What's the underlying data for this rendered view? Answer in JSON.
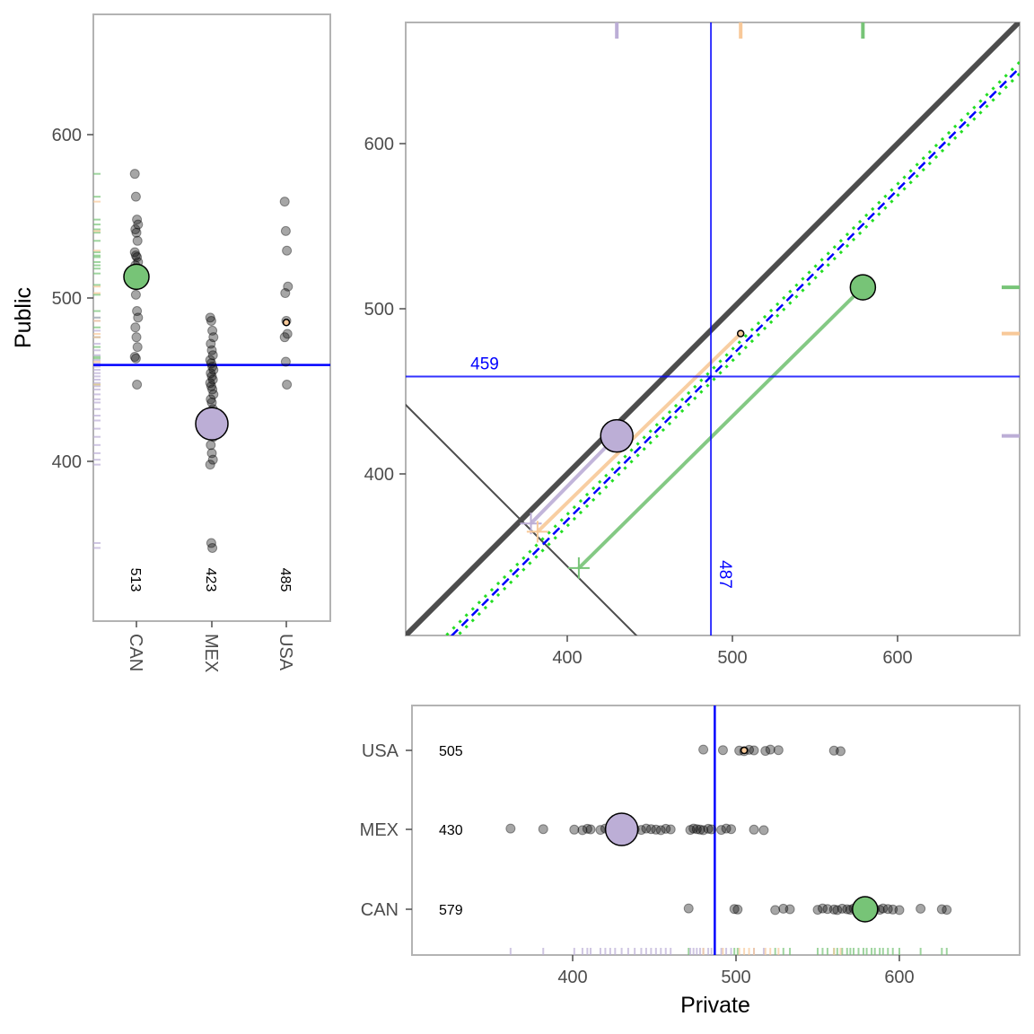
{
  "chart_data": {
    "type": "scatter",
    "description_axes": {
      "xlabel": "Private",
      "ylabel": "Public"
    },
    "groups": [
      "CAN",
      "MEX",
      "USA"
    ],
    "group_colors": {
      "CAN": "#77c477",
      "MEX": "#bcaed6",
      "USA": "#f8c999"
    },
    "reference_line_color": "#0000ff",
    "grand_mean_private": 487,
    "grand_mean_public": 459,
    "group_means": [
      {
        "group": "CAN",
        "private": 579,
        "public": 513,
        "private_label": "579",
        "public_label": "513"
      },
      {
        "group": "MEX",
        "private": 430,
        "public": 423,
        "private_label": "430",
        "public_label": "423"
      },
      {
        "group": "USA",
        "private": 505,
        "public": 485,
        "private_label": "505",
        "public_label": "485"
      }
    ],
    "public_by_group": {
      "CAN": [
        576,
        562,
        548,
        545,
        542,
        540,
        535,
        528,
        526,
        525,
        522,
        520,
        518,
        515,
        508,
        502,
        492,
        488,
        482,
        476,
        470,
        464,
        463,
        447
      ],
      "MEX": [
        488,
        486,
        480,
        476,
        472,
        468,
        465,
        462,
        460,
        458,
        456,
        454,
        452,
        450,
        448,
        446,
        444,
        441,
        438,
        436,
        432,
        428,
        425,
        420,
        415,
        410,
        405,
        401,
        398,
        350,
        347
      ],
      "USA": [
        559,
        541,
        529,
        507,
        503,
        486,
        478,
        476,
        461,
        447
      ]
    },
    "private_by_group": {
      "CAN": [
        471,
        499,
        501,
        524,
        529,
        533,
        550,
        553,
        556,
        560,
        562,
        565,
        568,
        570,
        572,
        575,
        578,
        580,
        583,
        585,
        588,
        590,
        593,
        596,
        600,
        613,
        626,
        629
      ],
      "MEX": [
        362,
        382,
        401,
        406,
        409,
        411,
        417,
        420,
        423,
        426,
        430,
        434,
        438,
        442,
        445,
        448,
        451,
        454,
        457,
        460,
        472,
        474,
        476,
        478,
        480,
        483,
        485,
        491,
        494,
        497,
        511,
        517
      ],
      "USA": [
        480,
        492,
        502,
        505,
        508,
        511,
        518,
        521,
        526,
        560,
        564
      ]
    },
    "top_left_y_axis": {
      "ticks": [
        400,
        500,
        600
      ],
      "ylim": [
        291,
        666
      ]
    },
    "top_right_axes": {
      "x_ticks": [
        400,
        500,
        600
      ],
      "y_ticks": [
        400,
        500,
        600
      ],
      "xlim": [
        300,
        672
      ],
      "ylim": [
        300,
        672
      ]
    },
    "bottom_axes": {
      "x_ticks": [
        400,
        500,
        600
      ],
      "xlim": [
        300,
        672
      ]
    },
    "diagonal_lines": [
      {
        "name": "identity",
        "description": "thick dark gray y = x"
      },
      {
        "name": "mean-difference",
        "description": "blue dashed offset line"
      },
      {
        "name": "confidence",
        "description": "green dotted offset lines"
      }
    ],
    "grid": false
  },
  "labels": {
    "xlabel": "Private",
    "ylabel": "Public",
    "hline_value": "459",
    "vline_value": "487",
    "top_y_ticks": [
      "400",
      "500",
      "600"
    ],
    "top_right_x_ticks": [
      "400",
      "500",
      "600"
    ],
    "top_right_y_ticks": [
      "400",
      "500",
      "600"
    ],
    "bottom_x_ticks": [
      "400",
      "500",
      "600"
    ],
    "left_x_ticks": [
      "CAN",
      "MEX",
      "USA"
    ],
    "bottom_y_ticks": [
      "USA",
      "MEX",
      "CAN"
    ]
  }
}
